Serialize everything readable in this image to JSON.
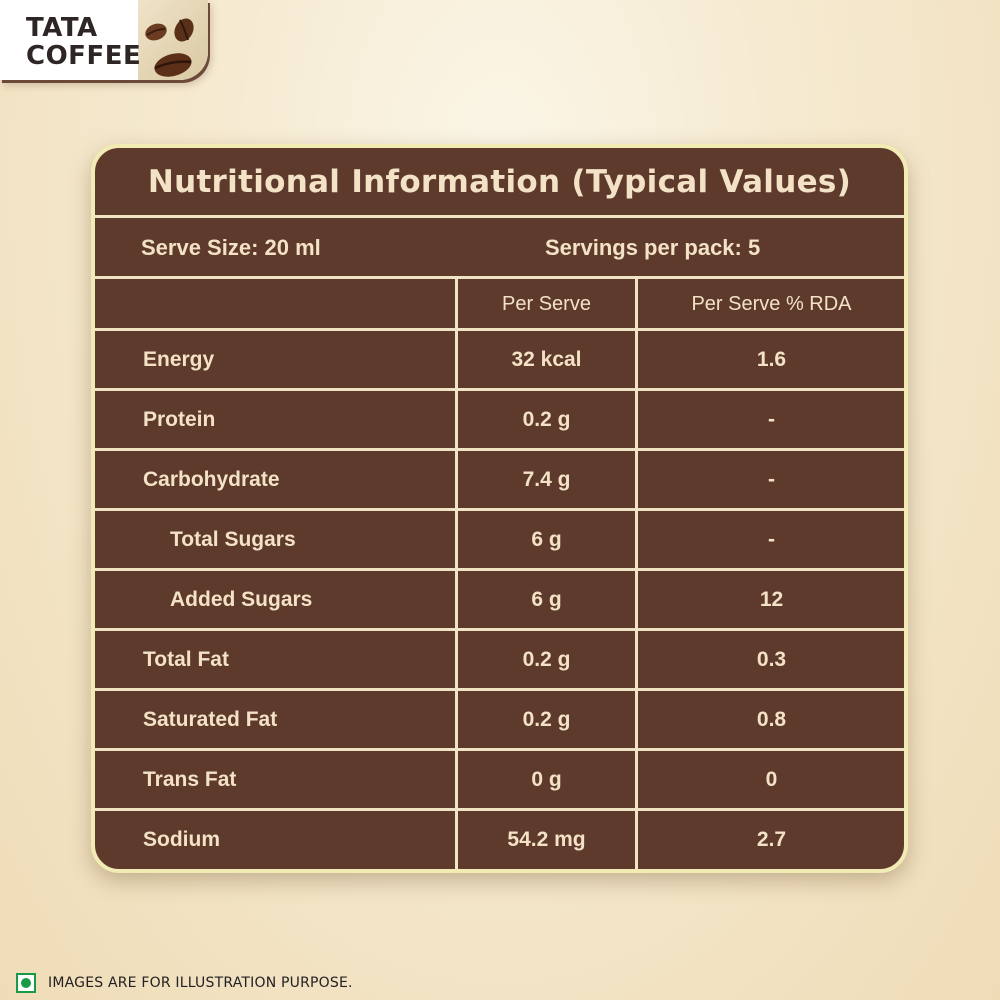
{
  "brand": {
    "line1": "TATA",
    "line2": "COFFEE",
    "icon": "coffee-beans-icon"
  },
  "table": {
    "title": "Nutritional Information (Typical Values)",
    "serve_size": "Serve Size: 20 ml",
    "servings_per_pack": "Servings per pack: 5",
    "columns": [
      "",
      "Per Serve",
      "Per Serve % RDA"
    ],
    "rows": [
      {
        "nutrient": "Energy",
        "per_serve": "32 kcal",
        "rda": "1.6"
      },
      {
        "nutrient": "Protein",
        "per_serve": "0.2 g",
        "rda": "-"
      },
      {
        "nutrient": "Carbohydrate",
        "per_serve": "7.4 g",
        "rda": "-"
      },
      {
        "nutrient": "Total Sugars",
        "per_serve": "6 g",
        "rda": "-"
      },
      {
        "nutrient": "Added Sugars",
        "per_serve": "6 g",
        "rda": "12"
      },
      {
        "nutrient": "Total Fat",
        "per_serve": "0.2 g",
        "rda": "0.3"
      },
      {
        "nutrient": "Saturated Fat",
        "per_serve": "0.2 g",
        "rda": "0.8"
      },
      {
        "nutrient": "Trans Fat",
        "per_serve": "0 g",
        "rda": "0"
      },
      {
        "nutrient": "Sodium",
        "per_serve": "54.2 mg",
        "rda": "2.7"
      }
    ]
  },
  "footer": {
    "icon": "veg-mark-icon",
    "note": "IMAGES ARE FOR ILLUSTRATION PURPOSE."
  },
  "colors": {
    "panel": "#5e3a2d",
    "border": "#f2ecb4",
    "text": "#f3e2c6",
    "veg_green": "#1b9a45"
  }
}
